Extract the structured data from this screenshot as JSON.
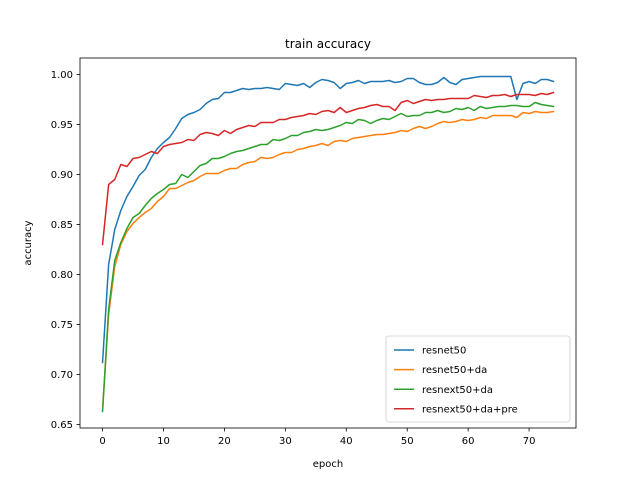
{
  "chart_data": {
    "type": "line",
    "title": "train accuracy",
    "xlabel": "epoch",
    "ylabel": "accuracy",
    "xlim": [
      -3.7,
      77.7
    ],
    "ylim": [
      0.6465,
      1.0165
    ],
    "x_ticks": [
      0,
      10,
      20,
      30,
      40,
      50,
      60,
      70
    ],
    "y_ticks": [
      0.65,
      0.7,
      0.75,
      0.8,
      0.85,
      0.9,
      0.95,
      1.0
    ],
    "y_tick_labels": [
      "0.65",
      "0.70",
      "0.75",
      "0.80",
      "0.85",
      "0.90",
      "0.95",
      "1.00"
    ],
    "grid": false,
    "legend_position": "lower-right",
    "x": [
      0,
      1,
      2,
      3,
      4,
      5,
      6,
      7,
      8,
      9,
      10,
      11,
      12,
      13,
      14,
      15,
      16,
      17,
      18,
      19,
      20,
      21,
      22,
      23,
      24,
      25,
      26,
      27,
      28,
      29,
      30,
      31,
      32,
      33,
      34,
      35,
      36,
      37,
      38,
      39,
      40,
      41,
      42,
      43,
      44,
      45,
      46,
      47,
      48,
      49,
      50,
      51,
      52,
      53,
      54,
      55,
      56,
      57,
      58,
      59,
      60,
      61,
      62,
      63,
      64,
      65,
      66,
      67,
      68,
      69,
      70,
      71,
      72,
      73,
      74
    ],
    "series": [
      {
        "name": "resnet50",
        "color": "#1f77b4",
        "values": [
          0.712,
          0.81,
          0.845,
          0.864,
          0.878,
          0.888,
          0.899,
          0.905,
          0.917,
          0.926,
          0.932,
          0.937,
          0.946,
          0.956,
          0.96,
          0.962,
          0.965,
          0.971,
          0.975,
          0.976,
          0.982,
          0.982,
          0.984,
          0.986,
          0.985,
          0.986,
          0.986,
          0.987,
          0.986,
          0.985,
          0.991,
          0.99,
          0.989,
          0.991,
          0.987,
          0.992,
          0.995,
          0.994,
          0.992,
          0.986,
          0.991,
          0.992,
          0.994,
          0.991,
          0.993,
          0.993,
          0.993,
          0.994,
          0.992,
          0.993,
          0.996,
          0.996,
          0.992,
          0.99,
          0.99,
          0.992,
          0.997,
          0.992,
          0.99,
          0.995,
          0.996,
          0.997,
          0.998,
          0.998,
          0.998,
          0.998,
          0.998,
          0.998,
          0.975,
          0.991,
          0.993,
          0.991,
          0.995,
          0.995,
          0.993
        ]
      },
      {
        "name": "resnet50+da",
        "color": "#ff7f0e",
        "values": [
          0.665,
          0.76,
          0.808,
          0.83,
          0.843,
          0.851,
          0.857,
          0.862,
          0.866,
          0.873,
          0.878,
          0.886,
          0.886,
          0.889,
          0.892,
          0.894,
          0.898,
          0.901,
          0.901,
          0.901,
          0.904,
          0.906,
          0.906,
          0.91,
          0.912,
          0.913,
          0.917,
          0.916,
          0.917,
          0.92,
          0.922,
          0.922,
          0.925,
          0.926,
          0.928,
          0.929,
          0.931,
          0.929,
          0.933,
          0.934,
          0.933,
          0.936,
          0.937,
          0.938,
          0.939,
          0.94,
          0.94,
          0.941,
          0.942,
          0.944,
          0.943,
          0.946,
          0.948,
          0.946,
          0.948,
          0.951,
          0.953,
          0.952,
          0.953,
          0.955,
          0.954,
          0.955,
          0.957,
          0.956,
          0.959,
          0.959,
          0.959,
          0.959,
          0.957,
          0.962,
          0.961,
          0.963,
          0.962,
          0.962,
          0.963
        ]
      },
      {
        "name": "resnext50+da",
        "color": "#2ca02c",
        "values": [
          0.663,
          0.765,
          0.814,
          0.832,
          0.846,
          0.857,
          0.861,
          0.869,
          0.876,
          0.881,
          0.885,
          0.89,
          0.891,
          0.9,
          0.897,
          0.903,
          0.909,
          0.911,
          0.916,
          0.916,
          0.918,
          0.921,
          0.923,
          0.924,
          0.926,
          0.928,
          0.93,
          0.93,
          0.935,
          0.934,
          0.936,
          0.939,
          0.939,
          0.942,
          0.943,
          0.945,
          0.944,
          0.945,
          0.947,
          0.949,
          0.952,
          0.951,
          0.955,
          0.954,
          0.951,
          0.954,
          0.956,
          0.955,
          0.958,
          0.961,
          0.958,
          0.959,
          0.959,
          0.962,
          0.962,
          0.964,
          0.962,
          0.963,
          0.966,
          0.965,
          0.967,
          0.964,
          0.968,
          0.966,
          0.967,
          0.968,
          0.968,
          0.969,
          0.969,
          0.968,
          0.968,
          0.972,
          0.97,
          0.969,
          0.968
        ]
      },
      {
        "name": "resnext50+da+pre",
        "color": "#d62728",
        "values": [
          0.83,
          0.89,
          0.895,
          0.91,
          0.908,
          0.916,
          0.917,
          0.92,
          0.923,
          0.921,
          0.928,
          0.93,
          0.931,
          0.932,
          0.935,
          0.934,
          0.94,
          0.942,
          0.941,
          0.939,
          0.944,
          0.941,
          0.945,
          0.947,
          0.949,
          0.948,
          0.952,
          0.952,
          0.952,
          0.955,
          0.955,
          0.957,
          0.958,
          0.959,
          0.961,
          0.96,
          0.963,
          0.964,
          0.962,
          0.967,
          0.962,
          0.964,
          0.966,
          0.967,
          0.969,
          0.97,
          0.968,
          0.968,
          0.964,
          0.972,
          0.974,
          0.971,
          0.973,
          0.975,
          0.974,
          0.975,
          0.975,
          0.976,
          0.976,
          0.976,
          0.976,
          0.979,
          0.978,
          0.977,
          0.979,
          0.979,
          0.98,
          0.978,
          0.98,
          0.98,
          0.98,
          0.979,
          0.981,
          0.98,
          0.982
        ]
      }
    ]
  }
}
